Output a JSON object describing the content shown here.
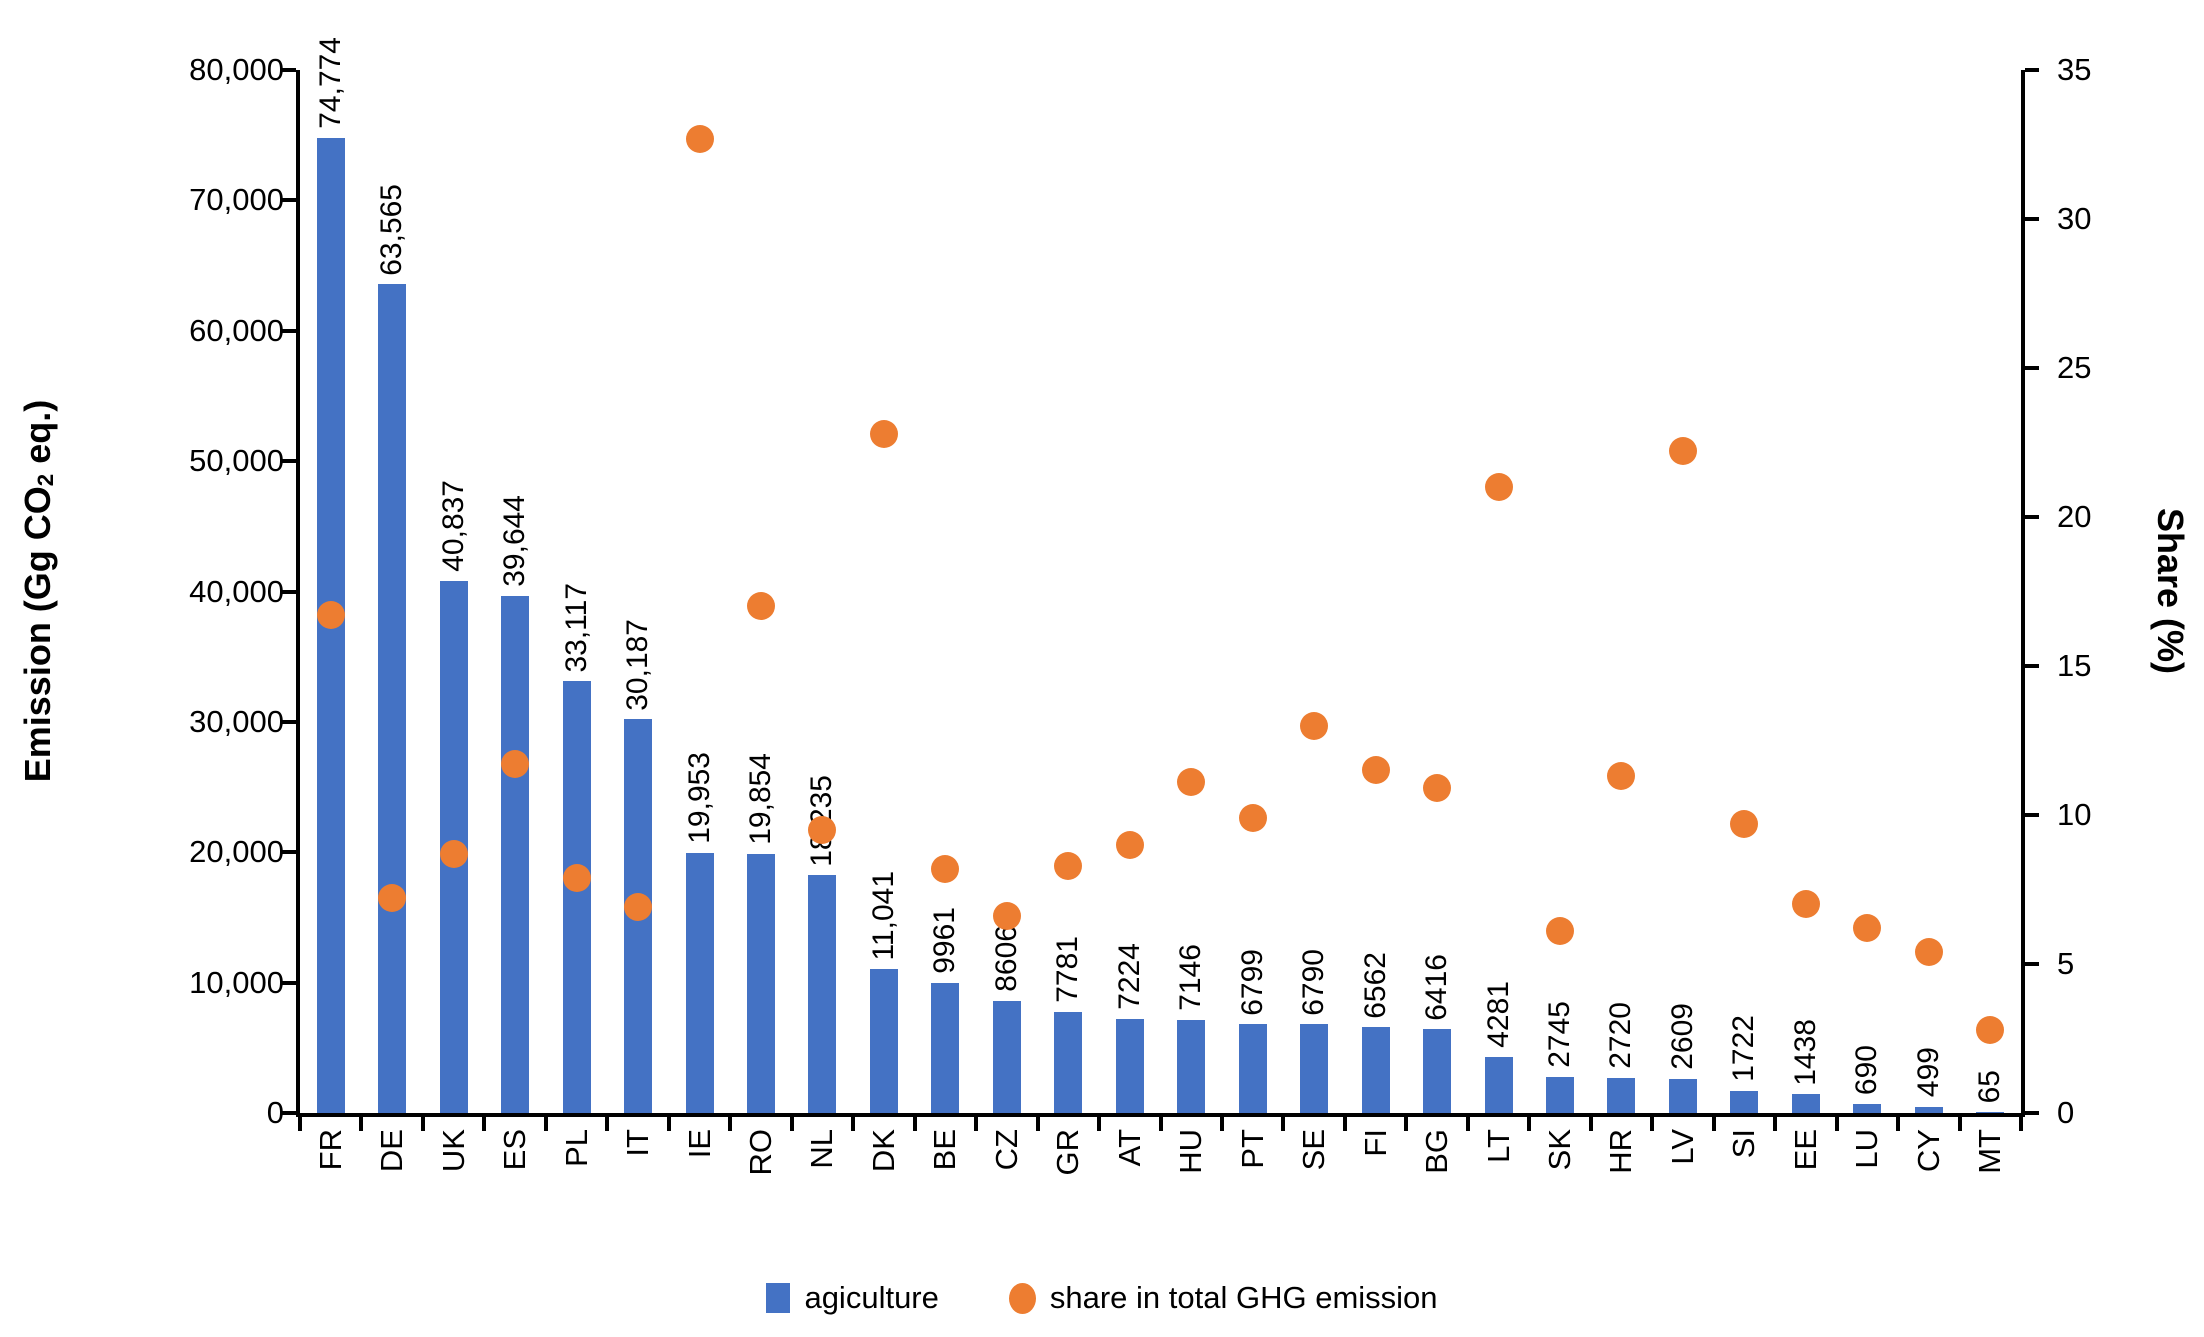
{
  "chart_data": {
    "type": "bar",
    "subtype": "bar-and-scatter-combo",
    "categories": [
      "FR",
      "DE",
      "UK",
      "ES",
      "PL",
      "IT",
      "IE",
      "RO",
      "NL",
      "DK",
      "BE",
      "CZ",
      "GR",
      "AT",
      "HU",
      "PT",
      "SE",
      "FI",
      "BG",
      "LT",
      "SK",
      "HR",
      "LV",
      "SI",
      "EE",
      "LU",
      "CY",
      "MT"
    ],
    "series": [
      {
        "name": "agiculture",
        "type": "bar",
        "axis": "left",
        "color": "#4472C4",
        "values": [
          74774,
          63565,
          40837,
          39644,
          33117,
          30187,
          19953,
          19854,
          18235,
          11041,
          9961,
          8606,
          7781,
          7224,
          7146,
          6799,
          6790,
          6562,
          6416,
          4281,
          2745,
          2720,
          2609,
          1722,
          1438,
          690,
          499,
          65
        ]
      },
      {
        "name": "share in total GHG emission",
        "type": "scatter",
        "axis": "right",
        "color": "#ED7D31",
        "values": [
          16.7,
          7.2,
          8.7,
          11.7,
          7.9,
          6.9,
          32.7,
          17.0,
          9.5,
          22.8,
          8.2,
          6.6,
          8.3,
          9.0,
          11.1,
          9.9,
          13.0,
          11.5,
          10.9,
          21.0,
          6.1,
          11.3,
          22.2,
          9.7,
          7.0,
          6.2,
          5.4,
          2.8
        ]
      }
    ],
    "bar_labels": [
      "74,774",
      "63,565",
      "40,837",
      "39,644",
      "33,117",
      "30,187",
      "19,953",
      "19,854",
      "18,235",
      "11,041",
      "9961",
      "8606",
      "7781",
      "7224",
      "7146",
      "6799",
      "6790",
      "6562",
      "6416",
      "4281",
      "2745",
      "2720",
      "2609",
      "1722",
      "1438",
      "690",
      "499",
      "65"
    ],
    "left_axis": {
      "title_prefix": "Emission (Gg CO",
      "title_sub": "2",
      "title_suffix": " eq.)",
      "min": 0,
      "max": 80000,
      "tick_step": 10000,
      "ticks": [
        "0",
        "10,000",
        "20,000",
        "30,000",
        "40,000",
        "50,000",
        "60,000",
        "70,000",
        "80,000"
      ]
    },
    "right_axis": {
      "title": "Share (%)",
      "min": 0,
      "max": 35,
      "tick_step": 5,
      "ticks": [
        "0",
        "5",
        "10",
        "15",
        "20",
        "25",
        "30",
        "35"
      ]
    },
    "legend": [
      {
        "label": "agiculture",
        "marker": "square",
        "color": "#4472C4"
      },
      {
        "label": "share in total GHG emission",
        "marker": "circle",
        "color": "#ED7D31"
      }
    ],
    "layout": {
      "grid": false,
      "legend_position": "bottom",
      "background": "#FFFFFF",
      "x_labels_rotated": true,
      "bar_labels_rotated": true
    }
  },
  "colors": {
    "bar": "#4472C4",
    "dot": "#ED7D31",
    "axis": "#000000",
    "text": "#000000",
    "background": "#FFFFFF"
  }
}
